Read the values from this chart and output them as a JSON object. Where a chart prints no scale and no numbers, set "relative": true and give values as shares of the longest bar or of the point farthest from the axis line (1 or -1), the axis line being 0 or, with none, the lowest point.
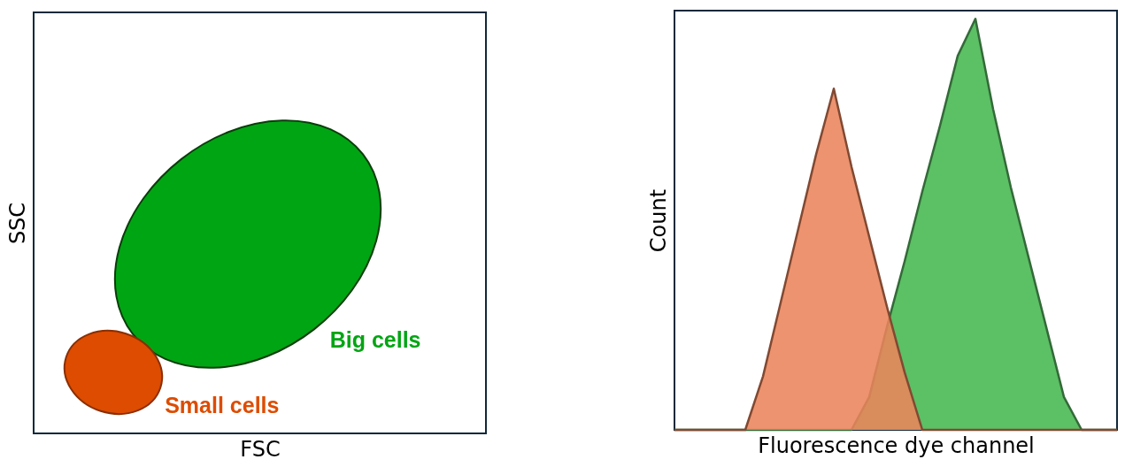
{
  "chart_data": [
    {
      "type": "other",
      "xlabel": "FSC",
      "ylabel": "SSC",
      "annotations": [
        "Big cells",
        "Small cells"
      ]
    },
    {
      "type": "area",
      "relative": true,
      "xlabel": "Fluorescence dye channel",
      "ylabel": "Count",
      "categories": [
        null,
        null,
        null,
        null,
        null,
        null,
        null,
        null,
        null,
        null,
        null,
        null,
        null,
        null,
        null,
        null,
        null,
        null,
        null,
        null,
        null,
        null,
        null,
        null,
        null,
        null
      ],
      "series": [
        {
          "color": "#5cc065",
          "values": [
            0,
            0,
            0,
            0,
            0,
            0,
            0,
            0,
            0,
            0,
            0,
            0.08,
            0.25,
            0.41,
            0.58,
            0.74,
            0.91,
            1.0,
            0.78,
            0.59,
            0.42,
            0.25,
            0.08,
            0,
            0,
            0
          ]
        },
        {
          "color": "#ea845b",
          "values": [
            0,
            0,
            0,
            0,
            0,
            0.13,
            0.31,
            0.49,
            0.67,
            0.83,
            0.64,
            0.47,
            0.3,
            0.14,
            0,
            0,
            0,
            0,
            0,
            0,
            0,
            0,
            0,
            0,
            0,
            0
          ]
        }
      ]
    }
  ]
}
